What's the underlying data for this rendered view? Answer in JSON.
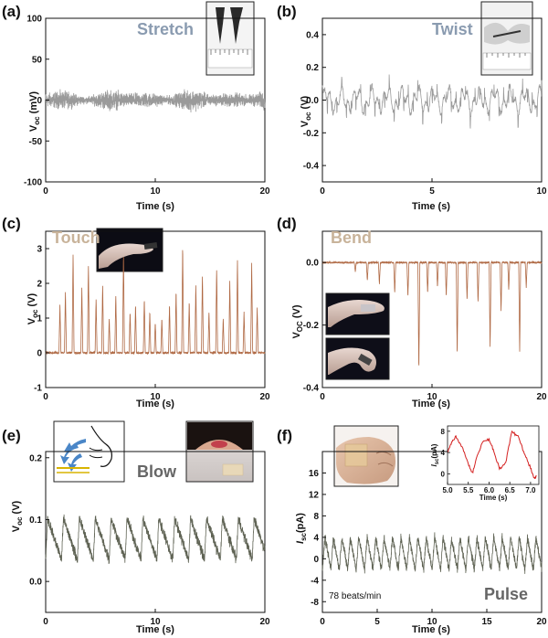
{
  "chart_data": [
    {
      "id": "a",
      "panel_label": "(a)",
      "type": "line",
      "annotation": "Stretch",
      "annotation_color": "#8a9bb0",
      "trace_color": "#9a9a9a",
      "xlabel": "Time (s)",
      "ylabel_main": "V",
      "ylabel_sub": "oc",
      "ylabel_unit": " (mV)",
      "xlim": [
        0,
        20
      ],
      "ylim": [
        -100,
        100
      ],
      "xticks": [
        0,
        10,
        20
      ],
      "yticks": [
        -100,
        -50,
        0,
        50,
        100
      ],
      "signal": {
        "kind": "noise_band",
        "amplitude_mV": 15,
        "baseline": 0
      },
      "insets": [
        "stretch-photo"
      ]
    },
    {
      "id": "b",
      "panel_label": "(b)",
      "type": "line",
      "annotation": "Twist",
      "annotation_color": "#8a9bb0",
      "trace_color": "#9a9a9a",
      "xlabel": "Time (s)",
      "ylabel_main": "V",
      "ylabel_sub": "oc",
      "ylabel_unit": " (V)",
      "xlim": [
        0,
        10
      ],
      "ylim": [
        -0.5,
        0.5
      ],
      "xticks": [
        0,
        5,
        10
      ],
      "yticks": [
        -0.4,
        -0.2,
        0.0,
        0.2,
        0.4
      ],
      "signal": {
        "kind": "oscillation",
        "amplitude_V": 0.12,
        "baseline": 0
      },
      "insets": [
        "twist-photo"
      ]
    },
    {
      "id": "c",
      "panel_label": "(c)",
      "type": "line",
      "annotation": "Touch",
      "annotation_color": "#c8b39a",
      "trace_color": "#b06a45",
      "xlabel": "Time (s)",
      "ylabel_main": "V",
      "ylabel_sub": "oc",
      "ylabel_unit": " (V)",
      "xlim": [
        0,
        20
      ],
      "ylim": [
        -1,
        3.5
      ],
      "xticks": [
        0,
        10,
        20
      ],
      "yticks": [
        -1,
        0,
        1,
        2,
        3
      ],
      "signal": {
        "kind": "positive_spikes",
        "baseline": 0,
        "peaks_x": [
          1.3,
          1.8,
          2.5,
          3.3,
          3.9,
          4.6,
          5.2,
          5.8,
          6.4,
          7.1,
          7.7,
          8.2,
          9.0,
          9.5,
          10.0,
          10.6,
          11.3,
          11.9,
          12.5,
          13.1,
          13.7,
          14.3,
          14.9,
          15.6,
          16.2,
          16.8,
          17.5,
          18.1,
          18.8,
          19.3
        ],
        "peaks_y": [
          1.4,
          1.8,
          2.9,
          1.9,
          2.6,
          1.6,
          2.0,
          1.0,
          1.7,
          2.9,
          1.2,
          1.4,
          1.6,
          1.2,
          0.9,
          1.0,
          1.4,
          1.8,
          3.1,
          1.5,
          2.0,
          2.3,
          1.2,
          2.5,
          1.0,
          2.1,
          2.7,
          1.2,
          2.6,
          1.3
        ]
      },
      "insets": [
        "touch-photo"
      ]
    },
    {
      "id": "d",
      "panel_label": "(d)",
      "type": "line",
      "annotation": "Bend",
      "annotation_color": "#c8b39a",
      "trace_color": "#b06a45",
      "xlabel": "Time (s)",
      "ylabel_main": "V",
      "ylabel_sub": "OC",
      "ylabel_unit": " (V)",
      "xlim": [
        0,
        20
      ],
      "ylim": [
        -0.4,
        0.1
      ],
      "xticks": [
        0,
        10,
        20
      ],
      "yticks": [
        -0.4,
        -0.2,
        0.0
      ],
      "signal": {
        "kind": "negative_spikes",
        "baseline": 0,
        "peaks_x": [
          3.0,
          4.1,
          5.2,
          6.6,
          7.8,
          8.8,
          9.6,
          10.5,
          11.3,
          12.3,
          13.2,
          14.2,
          15.3,
          16.3,
          17.0,
          18.0,
          18.6
        ],
        "peaks_y": [
          -0.03,
          -0.06,
          -0.07,
          -0.1,
          -0.11,
          -0.35,
          -0.1,
          -0.08,
          -0.11,
          -0.3,
          -0.12,
          -0.13,
          -0.28,
          -0.16,
          -0.09,
          -0.29,
          -0.08
        ]
      },
      "insets": [
        "bend-photo-1",
        "bend-photo-2"
      ]
    },
    {
      "id": "e",
      "panel_label": "(e)",
      "type": "line",
      "annotation": "Blow",
      "annotation_color": "#666666",
      "trace_color": "#5f6354",
      "xlabel": "Time (s)",
      "ylabel_main": "V",
      "ylabel_sub": "oc",
      "ylabel_unit": " (V)",
      "xlim": [
        0,
        20
      ],
      "ylim": [
        -0.05,
        0.21
      ],
      "xticks": [
        0,
        10,
        20
      ],
      "yticks": [
        0.0,
        0.1,
        0.2
      ],
      "signal": {
        "kind": "sawtooth",
        "baseline": 0.05,
        "period_s": 1.45,
        "amplitude_V": 0.07
      },
      "insets": [
        "blow-diagram",
        "blow-photo"
      ]
    },
    {
      "id": "f",
      "panel_label": "(f)",
      "type": "line",
      "annotation": "Pulse",
      "annotation_color": "#666666",
      "trace_color": "#5f6354",
      "xlabel": "Time (s)",
      "ylabel_main": "I",
      "ylabel_sub": "sc",
      "ylabel_unit": "(pA)",
      "xlim": [
        0,
        20
      ],
      "ylim": [
        -10,
        20
      ],
      "xticks": [
        0,
        5,
        10,
        15,
        20
      ],
      "yticks": [
        -8,
        -4,
        0,
        4,
        8,
        12,
        16
      ],
      "note": "78 beats/min",
      "signal": {
        "kind": "pulse",
        "baseline": 0,
        "period_s": 0.77,
        "amplitude_pA": 6
      },
      "inset_chart": {
        "type": "line",
        "trace_color": "#d42020",
        "ylabel_main": "I",
        "ylabel_sub": "sc",
        "ylabel_unit": "(pA)",
        "xlabel": "Time (s)",
        "xlim": [
          5.0,
          7.2
        ],
        "ylim": [
          -2,
          9
        ],
        "xticks": [
          5.0,
          5.5,
          6.0,
          6.5,
          7.0
        ],
        "yticks": [
          0,
          4,
          8
        ],
        "points_x": [
          5.0,
          5.1,
          5.2,
          5.35,
          5.5,
          5.6,
          5.7,
          5.85,
          6.0,
          6.1,
          6.25,
          6.4,
          6.55,
          6.7,
          6.85,
          7.0,
          7.1,
          7.15
        ],
        "points_y": [
          4,
          6,
          7,
          5,
          2,
          0,
          3,
          6,
          6.5,
          4.5,
          1,
          2,
          8,
          7,
          4,
          1,
          -1,
          0
        ]
      },
      "insets": [
        "wrist-photo"
      ]
    }
  ]
}
